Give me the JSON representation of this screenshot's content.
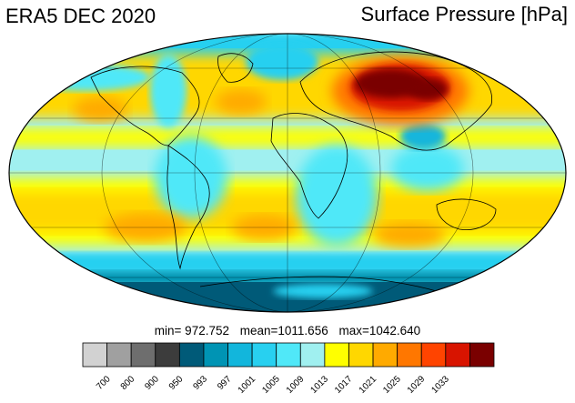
{
  "header": {
    "dataset_title": "ERA5 DEC 2020",
    "variable_title": "Surface Pressure [hPa]"
  },
  "stats": {
    "min": "min= 972.752",
    "mean": "mean=1011.656",
    "max": "max=1042.640"
  },
  "colorbar": {
    "colors": [
      "#d2d2d2",
      "#a0a0a0",
      "#6e6e6e",
      "#3c3c3c",
      "#005a78",
      "#0094b4",
      "#12b6dc",
      "#28d0f0",
      "#50e8f8",
      "#a0f0f0",
      "#ffff00",
      "#ffd700",
      "#ffaa00",
      "#ff7700",
      "#ff4400",
      "#d81400",
      "#7a0000"
    ],
    "ticks": [
      "700",
      "800",
      "900",
      "950",
      "993",
      "997",
      "1001",
      "1005",
      "1009",
      "1013",
      "1017",
      "1021",
      "1025",
      "1029",
      "1033"
    ]
  },
  "map_legend": {
    "projection": "mollweide",
    "background_color": "#fff",
    "coastline_color": "#000"
  }
}
